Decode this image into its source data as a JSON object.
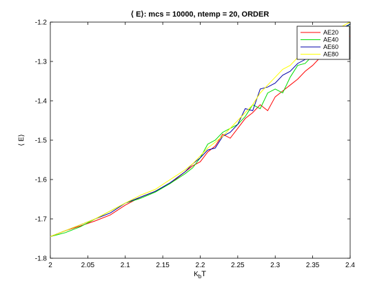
{
  "chart_data": {
    "type": "line",
    "title": "⟨ E⟩: mcs = 10000, ntemp = 20, ORDER",
    "xlabel_main": "K",
    "xlabel_sub": "b",
    "xlabel_tail": "T",
    "ylabel": "⟨ E⟩",
    "xlim": [
      2,
      2.4
    ],
    "ylim": [
      -1.8,
      -1.2
    ],
    "xticks": [
      2,
      2.05,
      2.1,
      2.15,
      2.2,
      2.25,
      2.3,
      2.35,
      2.4
    ],
    "xtick_labels": [
      "2",
      "2.05",
      "2.1",
      "2.15",
      "2.2",
      "2.25",
      "2.3",
      "2.35",
      "2.4"
    ],
    "yticks": [
      -1.8,
      -1.7,
      -1.6,
      -1.5,
      -1.4,
      -1.3,
      -1.2
    ],
    "ytick_labels": [
      "-1.8",
      "-1.7",
      "-1.6",
      "-1.5",
      "-1.4",
      "-1.3",
      "-1.2"
    ],
    "grid": false,
    "legend_position": "top-right",
    "series": [
      {
        "name": "AE20",
        "color": "#ff0000",
        "x": [
          2.0,
          2.02,
          2.04,
          2.06,
          2.08,
          2.1,
          2.12,
          2.14,
          2.16,
          2.18,
          2.19,
          2.2,
          2.21,
          2.22,
          2.23,
          2.24,
          2.25,
          2.26,
          2.27,
          2.28,
          2.29,
          2.3,
          2.31,
          2.32,
          2.33,
          2.34,
          2.35,
          2.36,
          2.37,
          2.38,
          2.39,
          2.4
        ],
        "y": [
          -1.745,
          -1.73,
          -1.718,
          -1.705,
          -1.69,
          -1.665,
          -1.645,
          -1.63,
          -1.61,
          -1.58,
          -1.565,
          -1.555,
          -1.53,
          -1.515,
          -1.485,
          -1.495,
          -1.47,
          -1.445,
          -1.43,
          -1.41,
          -1.425,
          -1.39,
          -1.375,
          -1.36,
          -1.345,
          -1.325,
          -1.31,
          -1.29,
          -1.275,
          -1.26,
          -1.245,
          -1.235
        ]
      },
      {
        "name": "AE40",
        "color": "#00dd00",
        "x": [
          2.0,
          2.02,
          2.04,
          2.06,
          2.08,
          2.1,
          2.12,
          2.14,
          2.16,
          2.18,
          2.19,
          2.2,
          2.21,
          2.22,
          2.23,
          2.24,
          2.25,
          2.26,
          2.27,
          2.28,
          2.29,
          2.3,
          2.31,
          2.32,
          2.33,
          2.34,
          2.35,
          2.36,
          2.37,
          2.38,
          2.39,
          2.4
        ],
        "y": [
          -1.745,
          -1.735,
          -1.72,
          -1.7,
          -1.68,
          -1.66,
          -1.648,
          -1.632,
          -1.61,
          -1.585,
          -1.57,
          -1.545,
          -1.51,
          -1.5,
          -1.48,
          -1.47,
          -1.46,
          -1.44,
          -1.41,
          -1.42,
          -1.38,
          -1.37,
          -1.38,
          -1.34,
          -1.31,
          -1.305,
          -1.285,
          -1.27,
          -1.255,
          -1.24,
          -1.22,
          -1.205
        ]
      },
      {
        "name": "AE60",
        "color": "#0000aa",
        "x": [
          2.0,
          2.02,
          2.04,
          2.06,
          2.08,
          2.1,
          2.12,
          2.14,
          2.16,
          2.18,
          2.19,
          2.2,
          2.21,
          2.22,
          2.23,
          2.24,
          2.25,
          2.26,
          2.27,
          2.28,
          2.29,
          2.3,
          2.31,
          2.32,
          2.33,
          2.34,
          2.35,
          2.36,
          2.37,
          2.38,
          2.39,
          2.4
        ],
        "y": [
          -1.745,
          -1.73,
          -1.715,
          -1.7,
          -1.685,
          -1.66,
          -1.645,
          -1.63,
          -1.608,
          -1.58,
          -1.56,
          -1.545,
          -1.525,
          -1.52,
          -1.49,
          -1.48,
          -1.46,
          -1.42,
          -1.425,
          -1.37,
          -1.365,
          -1.355,
          -1.335,
          -1.325,
          -1.305,
          -1.295,
          -1.275,
          -1.26,
          -1.245,
          -1.23,
          -1.215,
          -1.205
        ]
      },
      {
        "name": "AE80",
        "color": "#ffff00",
        "x": [
          2.0,
          2.02,
          2.04,
          2.06,
          2.08,
          2.1,
          2.12,
          2.14,
          2.16,
          2.18,
          2.19,
          2.2,
          2.21,
          2.22,
          2.23,
          2.24,
          2.25,
          2.26,
          2.27,
          2.28,
          2.29,
          2.3,
          2.31,
          2.32,
          2.33,
          2.34,
          2.35,
          2.36,
          2.37,
          2.38,
          2.39,
          2.4
        ],
        "y": [
          -1.745,
          -1.73,
          -1.715,
          -1.7,
          -1.68,
          -1.66,
          -1.64,
          -1.625,
          -1.6,
          -1.575,
          -1.56,
          -1.54,
          -1.52,
          -1.505,
          -1.49,
          -1.47,
          -1.45,
          -1.43,
          -1.41,
          -1.38,
          -1.36,
          -1.34,
          -1.32,
          -1.31,
          -1.29,
          -1.28,
          -1.265,
          -1.25,
          -1.235,
          -1.225,
          -1.21,
          -1.2
        ]
      }
    ]
  }
}
